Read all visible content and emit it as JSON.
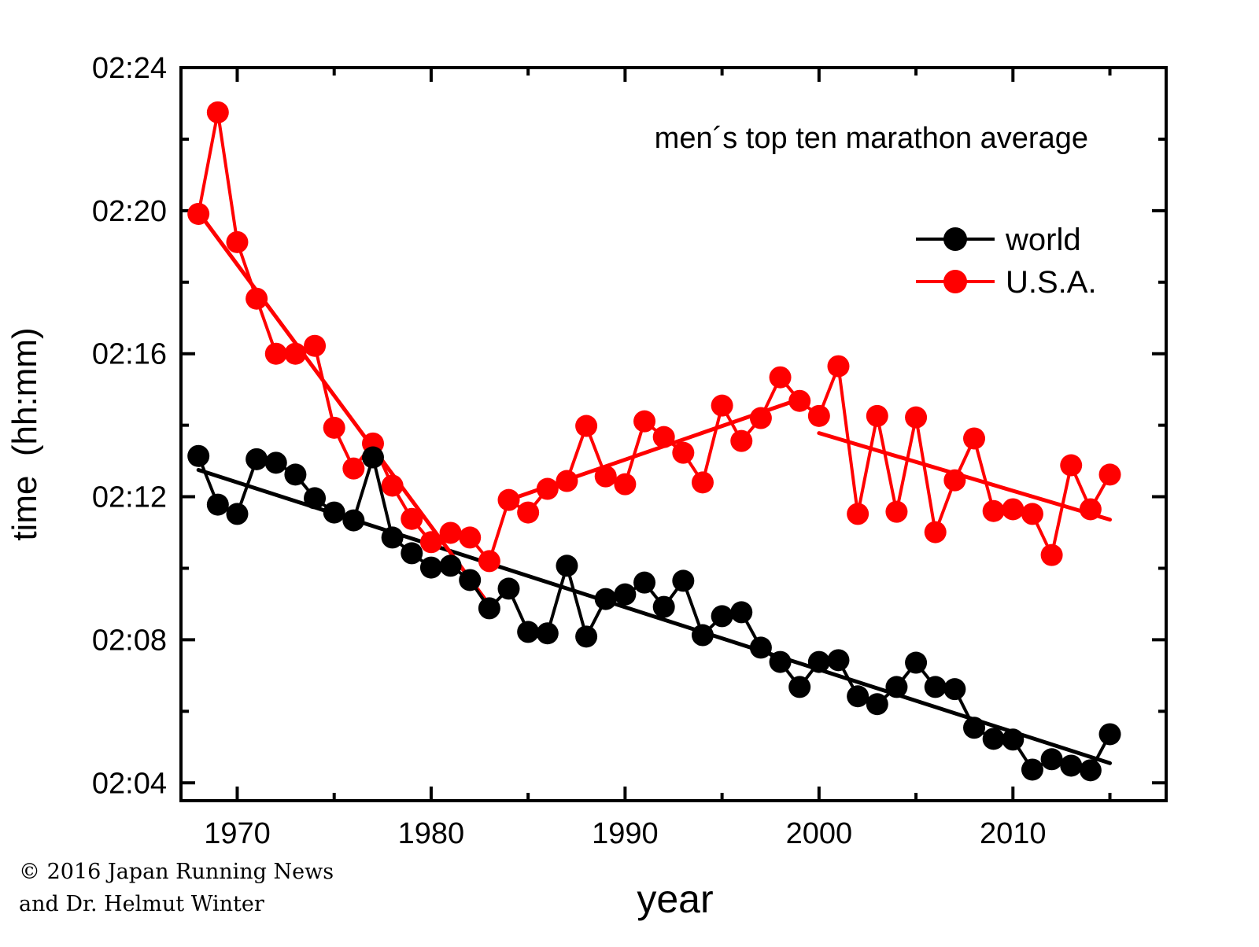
{
  "chart_data": {
    "type": "line",
    "title": "",
    "annotation": "men´s top ten marathon average",
    "xlabel": "year",
    "ylabel": "time  (hh:mm)",
    "xlim": [
      1967.1,
      2017.9
    ],
    "ylim_minutes_over_2h": [
      3.5,
      24
    ],
    "x_ticks": [
      1970,
      1980,
      1990,
      2000,
      2010
    ],
    "x_tick_labels": [
      "1970",
      "1980",
      "1990",
      "2000",
      "2010"
    ],
    "y_ticks_minutes_over_2h": [
      4,
      8,
      12,
      16,
      20,
      24
    ],
    "y_tick_labels": [
      "02:04",
      "02:08",
      "02:12",
      "02:16",
      "02:20",
      "02:24"
    ],
    "grid": false,
    "legend_position": "top-right",
    "x": [
      1968,
      1969,
      1970,
      1971,
      1972,
      1973,
      1974,
      1975,
      1976,
      1977,
      1978,
      1979,
      1980,
      1981,
      1982,
      1983,
      1984,
      1985,
      1986,
      1987,
      1988,
      1989,
      1990,
      1991,
      1992,
      1993,
      1994,
      1995,
      1996,
      1997,
      1998,
      1999,
      2000,
      2001,
      2002,
      2003,
      2004,
      2005,
      2006,
      2007,
      2008,
      2009,
      2010,
      2011,
      2012,
      2013,
      2014,
      2015
    ],
    "value_unit": "minutes over 2 hours",
    "series": [
      {
        "name": "world",
        "color": "#000000",
        "values": [
          13.14,
          11.78,
          11.52,
          13.05,
          12.95,
          12.62,
          11.96,
          11.56,
          11.34,
          13.1,
          10.86,
          10.42,
          10.02,
          10.07,
          9.67,
          8.88,
          9.43,
          8.22,
          8.18,
          10.07,
          8.09,
          9.14,
          9.27,
          9.6,
          8.92,
          9.65,
          8.13,
          8.66,
          8.77,
          7.78,
          7.38,
          6.68,
          7.38,
          7.43,
          6.42,
          6.2,
          6.68,
          7.36,
          6.68,
          6.62,
          5.54,
          5.23,
          5.21,
          4.37,
          4.66,
          4.48,
          4.35,
          5.36
        ]
      },
      {
        "name": "U.S.A.",
        "color": "#ff0000",
        "values": [
          19.91,
          22.75,
          19.12,
          17.54,
          16.0,
          16.0,
          16.22,
          13.93,
          12.79,
          13.49,
          12.31,
          11.38,
          10.73,
          10.99,
          10.86,
          10.2,
          11.91,
          11.56,
          12.22,
          12.44,
          13.98,
          12.57,
          12.35,
          14.11,
          13.67,
          13.23,
          12.4,
          14.55,
          13.56,
          14.2,
          15.34,
          14.68,
          14.26,
          15.65,
          11.52,
          14.26,
          11.58,
          14.22,
          11.01,
          12.46,
          13.63,
          11.6,
          11.65,
          11.52,
          10.37,
          12.88,
          11.65,
          12.62
        ]
      }
    ],
    "trend_lines": [
      {
        "series": "world",
        "color": "#000000",
        "x": [
          1968,
          2015
        ],
        "y": [
          12.75,
          4.55
        ]
      },
      {
        "series": "U.S.A.",
        "color": "#ff0000",
        "x": [
          1968,
          1983
        ],
        "y": [
          19.96,
          8.97
        ]
      },
      {
        "series": "U.S.A.",
        "color": "#ff0000",
        "x": [
          1984,
          1999
        ],
        "y": [
          11.91,
          14.73
        ]
      },
      {
        "series": "U.S.A.",
        "color": "#ff0000",
        "x": [
          2000,
          2015
        ],
        "y": [
          13.78,
          11.36
        ]
      }
    ]
  },
  "credit": {
    "line1": "© 2016 Japan Running News",
    "line2": "and Dr. Helmut Winter"
  }
}
